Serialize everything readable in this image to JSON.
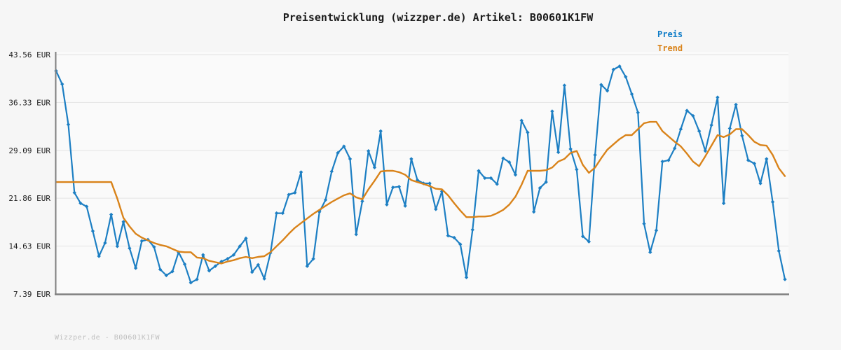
{
  "title": "Preisentwicklung (wizzper.de) Artikel: B00601K1FW",
  "legend": {
    "price": "Preis",
    "trend": "Trend"
  },
  "footer": "Wizzper.de - B00601K1FW",
  "colors": {
    "price_line": "#1d7fc3",
    "trend_line": "#d9831a",
    "legend_price": "#0f7dc8",
    "legend_trend": "#d9831a",
    "grid": "#e3e3e3",
    "spine": "#7f7f7f",
    "plot_bg": "#fafafa",
    "figure_bg": "#f6f6f6",
    "tick_text": "#1c1c1c",
    "footer_text": "#bfbfbf"
  },
  "chart_data": {
    "type": "line",
    "title": "Preisentwicklung (wizzper.de) Artikel: B00601K1FW",
    "ylabel": "EUR",
    "ylim": [
      7.39,
      43.56
    ],
    "grid": "horizontal",
    "legend_position": "top-right",
    "x_axis": "unlabeled time axis, equally spaced observations",
    "y_ticks": [
      {
        "label": "43.56 EUR",
        "value": 43.56
      },
      {
        "label": "36.33 EUR",
        "value": 36.33
      },
      {
        "label": "29.09 EUR",
        "value": 29.09
      },
      {
        "label": "21.86 EUR",
        "value": 21.86
      },
      {
        "label": "14.63 EUR",
        "value": 14.63
      },
      {
        "label": "7.39 EUR",
        "value": 7.39
      }
    ],
    "series": [
      {
        "name": "Preis",
        "color": "#1d7fc3",
        "marker": "diamond",
        "values": [
          41.1,
          39.1,
          33.0,
          22.7,
          21.1,
          20.6,
          16.9,
          13.1,
          15.1,
          19.4,
          14.6,
          18.3,
          14.3,
          11.3,
          15.4,
          15.6,
          14.5,
          11.1,
          10.2,
          10.8,
          13.7,
          11.9,
          9.1,
          9.6,
          13.3,
          10.9,
          11.6,
          12.3,
          12.7,
          13.3,
          14.6,
          15.8,
          10.7,
          11.8,
          9.7,
          13.6,
          19.6,
          19.6,
          22.4,
          22.7,
          25.8,
          11.6,
          12.7,
          19.8,
          21.6,
          25.9,
          28.7,
          29.7,
          27.8,
          16.4,
          21.4,
          29.0,
          26.5,
          32.0,
          20.9,
          23.5,
          23.6,
          20.7,
          27.8,
          24.6,
          24.1,
          24.1,
          20.2,
          22.9,
          16.2,
          15.9,
          14.9,
          9.9,
          17.1,
          26.0,
          24.9,
          24.9,
          24.0,
          27.9,
          27.3,
          25.4,
          33.6,
          31.8,
          19.8,
          23.4,
          24.3,
          35.0,
          28.8,
          38.9,
          29.3,
          26.2,
          16.1,
          15.3,
          28.4,
          39.0,
          38.1,
          41.3,
          41.8,
          40.2,
          37.6,
          34.8,
          18.0,
          13.7,
          17.0,
          27.4,
          27.6,
          29.4,
          32.3,
          35.1,
          34.3,
          32.0,
          29.0,
          32.9,
          37.1,
          21.1,
          32.4,
          36.0,
          31.3,
          27.6,
          27.1,
          24.1,
          27.8,
          21.3,
          13.9,
          9.6
        ]
      },
      {
        "name": "Trend",
        "color": "#d9831a",
        "marker": "none",
        "values": [
          24.3,
          24.3,
          24.3,
          24.3,
          24.3,
          24.3,
          24.3,
          24.3,
          24.3,
          24.3,
          21.8,
          18.9,
          17.6,
          16.5,
          15.9,
          15.5,
          15.1,
          14.8,
          14.6,
          14.2,
          13.8,
          13.7,
          13.7,
          12.9,
          12.8,
          12.4,
          12.2,
          12.0,
          12.3,
          12.5,
          12.8,
          13.0,
          12.8,
          13.0,
          13.1,
          13.7,
          14.6,
          15.5,
          16.5,
          17.4,
          18.1,
          18.8,
          19.5,
          20.1,
          20.7,
          21.3,
          21.8,
          22.3,
          22.6,
          22.0,
          21.7,
          23.2,
          24.5,
          25.9,
          26.0,
          26.0,
          25.8,
          25.4,
          24.6,
          24.3,
          24.0,
          23.7,
          23.3,
          23.2,
          22.3,
          21.1,
          20.0,
          19.0,
          19.0,
          19.1,
          19.1,
          19.2,
          19.6,
          20.1,
          20.9,
          22.1,
          23.9,
          26.0,
          26.0,
          26.0,
          26.1,
          26.5,
          27.4,
          27.8,
          28.7,
          29.0,
          26.9,
          25.7,
          26.5,
          27.9,
          29.2,
          30.0,
          30.8,
          31.4,
          31.4,
          32.3,
          33.2,
          33.4,
          33.4,
          32.0,
          31.2,
          30.4,
          29.7,
          28.6,
          27.4,
          26.7,
          28.2,
          29.8,
          31.4,
          31.1,
          31.5,
          32.3,
          32.3,
          31.4,
          30.4,
          29.9,
          29.8,
          28.4,
          26.4,
          25.2
        ]
      }
    ]
  }
}
